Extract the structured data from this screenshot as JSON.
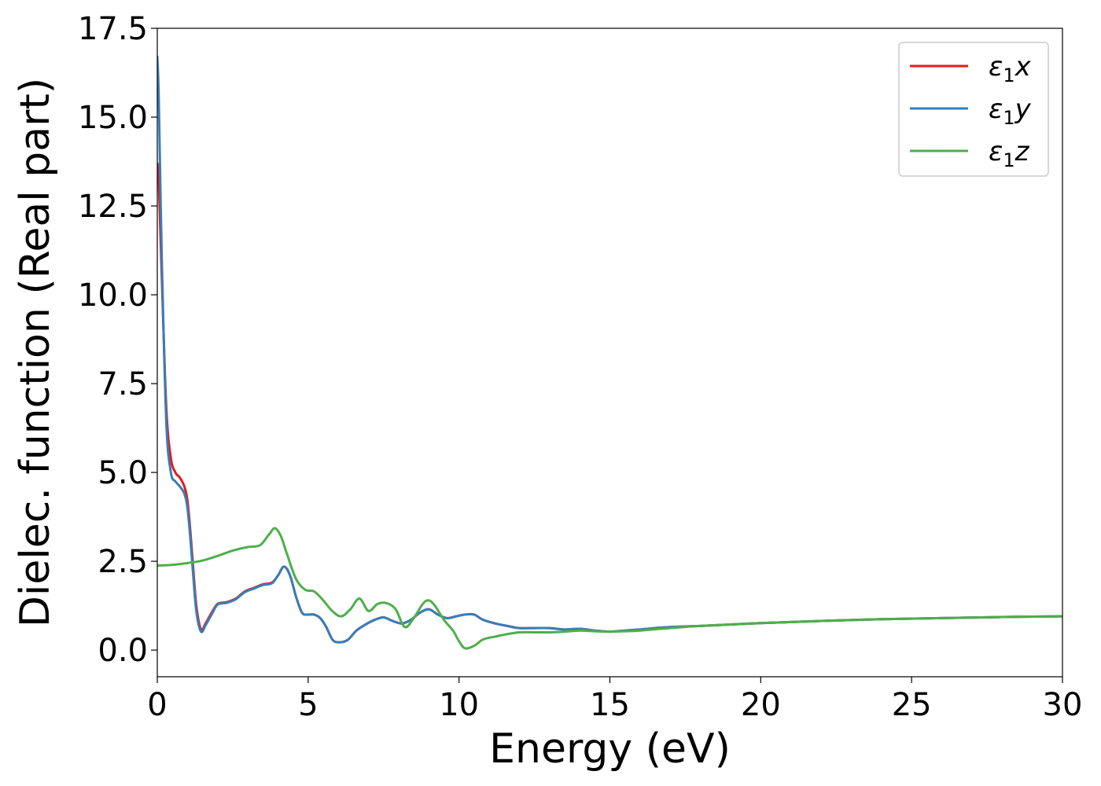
{
  "chart_data": {
    "type": "line",
    "title": "",
    "xlabel": "Energy (eV)",
    "ylabel": "Dielec. function (Real part)",
    "xlim": [
      0,
      30
    ],
    "ylim": [
      -0.75,
      17.5
    ],
    "xticks": [
      0,
      5,
      10,
      15,
      20,
      25,
      30
    ],
    "xtick_labels": [
      "0",
      "5",
      "10",
      "15",
      "20",
      "25",
      "30"
    ],
    "yticks": [
      0.0,
      2.5,
      5.0,
      7.5,
      10.0,
      12.5,
      15.0,
      17.5
    ],
    "ytick_labels": [
      "0.0",
      "2.5",
      "5.0",
      "7.5",
      "10.0",
      "12.5",
      "15.0",
      "17.5"
    ],
    "grid": false,
    "legend_position": "top-right",
    "series": [
      {
        "name": "ε1x",
        "legend_main": "ε",
        "legend_sub": "1",
        "legend_var": "x",
        "color": "#e41a1c",
        "x": [
          0,
          0.05,
          0.15,
          0.3,
          0.45,
          0.6,
          0.75,
          0.9,
          1.0,
          1.1,
          1.2,
          1.3,
          1.45,
          1.6,
          1.8,
          2.0,
          2.3,
          2.6,
          2.9,
          3.2,
          3.5,
          3.8,
          4.0,
          4.2,
          4.4,
          4.6,
          4.8,
          5.0,
          5.2,
          5.4,
          5.6,
          5.8,
          6.0,
          6.3,
          6.6,
          6.9,
          7.2,
          7.5,
          7.8,
          8.1,
          8.4,
          8.7,
          9.0,
          9.3,
          9.6,
          9.9,
          10.2,
          10.5,
          10.8,
          11.2,
          11.6,
          12.0,
          12.5,
          13.0,
          13.5,
          14.0,
          14.5,
          15.0,
          15.5,
          16.0,
          16.5,
          17.0,
          18.0,
          20.0,
          22.0,
          24.0,
          26.0,
          28.0,
          30.0
        ],
        "y": [
          13.7,
          13.2,
          10.5,
          6.8,
          5.4,
          5.0,
          4.85,
          4.6,
          4.2,
          3.3,
          2.2,
          1.2,
          0.58,
          0.75,
          1.05,
          1.3,
          1.35,
          1.45,
          1.65,
          1.75,
          1.85,
          1.9,
          2.1,
          2.35,
          2.1,
          1.5,
          1.05,
          1.0,
          1.0,
          0.9,
          0.65,
          0.3,
          0.22,
          0.28,
          0.55,
          0.72,
          0.85,
          0.92,
          0.82,
          0.75,
          0.85,
          1.05,
          1.15,
          1.0,
          0.9,
          0.95,
          1.0,
          1.0,
          0.85,
          0.75,
          0.68,
          0.62,
          0.62,
          0.62,
          0.58,
          0.6,
          0.55,
          0.52,
          0.55,
          0.58,
          0.62,
          0.65,
          0.68,
          0.76,
          0.82,
          0.87,
          0.9,
          0.93,
          0.95
        ]
      },
      {
        "name": "ε1y",
        "legend_main": "ε",
        "legend_sub": "1",
        "legend_var": "y",
        "color": "#377eb8",
        "x": [
          0,
          0.05,
          0.15,
          0.3,
          0.45,
          0.6,
          0.75,
          0.9,
          1.0,
          1.1,
          1.2,
          1.3,
          1.45,
          1.6,
          1.8,
          2.0,
          2.3,
          2.6,
          2.9,
          3.2,
          3.5,
          3.8,
          4.0,
          4.2,
          4.4,
          4.6,
          4.8,
          5.0,
          5.2,
          5.4,
          5.6,
          5.8,
          6.0,
          6.3,
          6.6,
          6.9,
          7.2,
          7.5,
          7.8,
          8.1,
          8.4,
          8.7,
          9.0,
          9.3,
          9.6,
          9.9,
          10.2,
          10.5,
          10.8,
          11.2,
          11.6,
          12.0,
          12.5,
          13.0,
          13.5,
          14.0,
          14.5,
          15.0,
          15.5,
          16.0,
          16.5,
          17.0,
          18.0,
          20.0,
          22.0,
          24.0,
          26.0,
          28.0,
          30.0
        ],
        "y": [
          16.7,
          15.5,
          11.0,
          6.4,
          5.0,
          4.75,
          4.6,
          4.4,
          4.0,
          3.1,
          2.0,
          1.05,
          0.52,
          0.7,
          1.0,
          1.28,
          1.33,
          1.43,
          1.63,
          1.73,
          1.83,
          1.88,
          2.1,
          2.35,
          2.1,
          1.5,
          1.05,
          1.0,
          1.0,
          0.9,
          0.65,
          0.3,
          0.22,
          0.28,
          0.55,
          0.72,
          0.85,
          0.92,
          0.82,
          0.75,
          0.85,
          1.05,
          1.15,
          1.0,
          0.9,
          0.95,
          1.0,
          1.0,
          0.85,
          0.75,
          0.68,
          0.62,
          0.62,
          0.62,
          0.58,
          0.6,
          0.55,
          0.52,
          0.55,
          0.58,
          0.62,
          0.65,
          0.68,
          0.76,
          0.82,
          0.87,
          0.9,
          0.93,
          0.95
        ]
      },
      {
        "name": "ε1z",
        "legend_main": "ε",
        "legend_sub": "1",
        "legend_var": "z",
        "color": "#4daf4a",
        "x": [
          0,
          0.5,
          1.0,
          1.5,
          2.0,
          2.5,
          3.0,
          3.4,
          3.7,
          3.9,
          4.1,
          4.3,
          4.6,
          4.9,
          5.2,
          5.5,
          5.8,
          6.1,
          6.4,
          6.7,
          7.0,
          7.3,
          7.6,
          7.9,
          8.2,
          8.5,
          8.8,
          9.0,
          9.2,
          9.5,
          9.8,
          10.0,
          10.2,
          10.5,
          10.8,
          11.2,
          11.6,
          12.0,
          12.5,
          13.0,
          13.5,
          14.0,
          14.5,
          15.0,
          15.5,
          16.0,
          17.0,
          18.0,
          20.0,
          22.0,
          24.0,
          26.0,
          28.0,
          30.0
        ],
        "y": [
          2.38,
          2.4,
          2.45,
          2.52,
          2.65,
          2.8,
          2.9,
          2.95,
          3.25,
          3.43,
          3.2,
          2.7,
          2.0,
          1.7,
          1.65,
          1.4,
          1.1,
          0.95,
          1.15,
          1.45,
          1.1,
          1.3,
          1.32,
          1.15,
          0.65,
          0.9,
          1.3,
          1.4,
          1.25,
          0.85,
          0.55,
          0.25,
          0.05,
          0.12,
          0.3,
          0.38,
          0.45,
          0.5,
          0.5,
          0.5,
          0.52,
          0.55,
          0.53,
          0.52,
          0.53,
          0.55,
          0.62,
          0.68,
          0.76,
          0.82,
          0.87,
          0.9,
          0.93,
          0.95
        ]
      }
    ]
  }
}
